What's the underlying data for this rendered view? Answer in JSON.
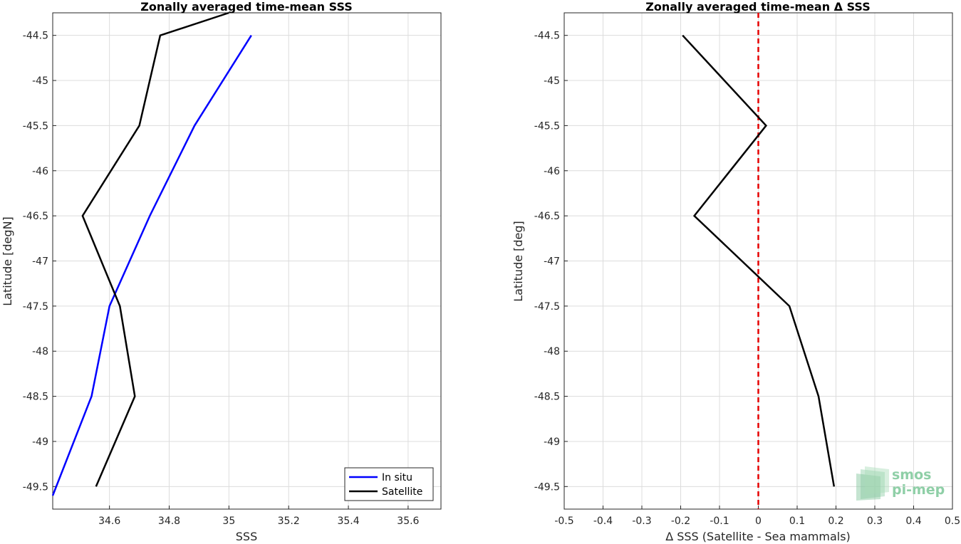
{
  "chart_data": [
    {
      "type": "line",
      "title": "Zonally averaged time-mean SSS",
      "xlabel": "SSS",
      "ylabel": "Latitude [degN]",
      "xlim": [
        34.41,
        35.71
      ],
      "ylim": [
        -49.75,
        -44.25
      ],
      "y_reversed": true,
      "xticks": [
        34.6,
        34.8,
        35,
        35.2,
        35.4,
        35.6
      ],
      "xtick_labels": [
        "34.6",
        "34.8",
        "35",
        "35.2",
        "35.4",
        "35.6"
      ],
      "yticks": [
        -44.5,
        -45,
        -45.5,
        -46,
        -46.5,
        -47,
        -47.5,
        -48,
        -48.5,
        -49,
        -49.5
      ],
      "ytick_labels": [
        "-44.5",
        "-45",
        "-45.5",
        "-46",
        "-46.5",
        "-47",
        "-47.5",
        "-48",
        "-48.5",
        "-49",
        "-49.5"
      ],
      "grid": true,
      "legend_position": "bottom-right",
      "series": [
        {
          "name": "In situ",
          "color": "#0000ff",
          "x": [
            35.075,
            34.885,
            34.735,
            34.6,
            34.54,
            34.41
          ],
          "y": [
            -44.5,
            -45.5,
            -46.5,
            -47.5,
            -48.5,
            -49.6
          ]
        },
        {
          "name": "Satellite",
          "color": "#000000",
          "x": [
            35.0,
            34.77,
            34.7,
            34.51,
            34.635,
            34.685,
            34.555
          ],
          "y": [
            -44.25,
            -44.5,
            -45.5,
            -46.5,
            -47.5,
            -48.5,
            -49.5
          ]
        }
      ]
    },
    {
      "type": "line",
      "title": "Zonally averaged time-mean Δ SSS",
      "xlabel": "Δ SSS (Satellite - Sea mammals)",
      "ylabel": "Latitude [deg]",
      "xlim": [
        -0.5,
        0.5
      ],
      "ylim": [
        -49.75,
        -44.25
      ],
      "y_reversed": true,
      "xticks": [
        -0.5,
        -0.4,
        -0.3,
        -0.2,
        -0.1,
        0,
        0.1,
        0.2,
        0.3,
        0.4,
        0.5
      ],
      "xtick_labels": [
        "-0.5",
        "-0.4",
        "-0.3",
        "-0.2",
        "-0.1",
        "0",
        "0.1",
        "0.2",
        "0.3",
        "0.4",
        "0.5"
      ],
      "yticks": [
        -44.5,
        -45,
        -45.5,
        -46,
        -46.5,
        -47,
        -47.5,
        -48,
        -48.5,
        -49,
        -49.5
      ],
      "ytick_labels": [
        "-44.5",
        "-45",
        "-45.5",
        "-46",
        "-46.5",
        "-47",
        "-47.5",
        "-48",
        "-48.5",
        "-49",
        "-49.5"
      ],
      "grid": true,
      "reference_line": {
        "x": 0,
        "color": "#e60000",
        "style": "dashed"
      },
      "series": [
        {
          "color": "#000000",
          "x": [
            -0.195,
            0.02,
            -0.165,
            0.08,
            0.155,
            0.195
          ],
          "y": [
            -44.5,
            -45.5,
            -46.5,
            -47.5,
            -48.5,
            -49.5
          ]
        }
      ]
    }
  ],
  "logo": {
    "line1": "smos",
    "line2": "pi-mep",
    "color": "#8fcfa7"
  }
}
